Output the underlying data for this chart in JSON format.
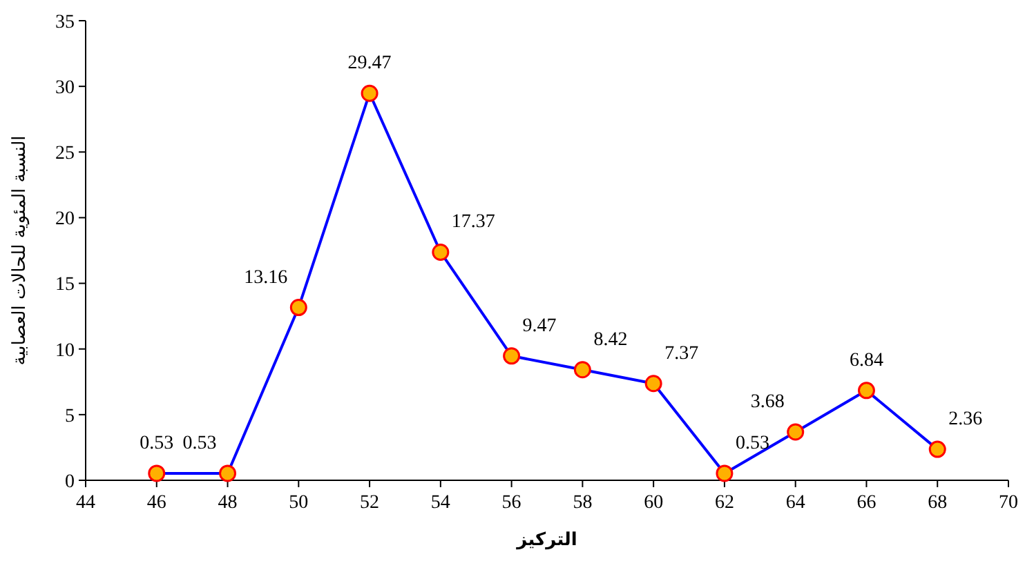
{
  "chart_data": {
    "type": "line",
    "xlabel": "التركيز",
    "ylabel": "النسبة المئوية للحالات العصابية",
    "x": [
      46,
      48,
      50,
      52,
      54,
      56,
      58,
      60,
      62,
      64,
      66,
      68
    ],
    "series": [
      {
        "color": "#0000ff",
        "values": [
          0.53,
          0.53,
          13.16,
          29.47,
          17.37,
          9.47,
          8.42,
          7.37,
          0.53,
          3.68,
          6.84,
          2.36
        ]
      }
    ],
    "xlim": [
      44,
      70
    ],
    "xticks": [
      44,
      46,
      48,
      50,
      52,
      54,
      56,
      58,
      60,
      62,
      64,
      66,
      68,
      70
    ],
    "ylim": [
      0,
      35
    ],
    "yticks": [
      0,
      5,
      10,
      15,
      20,
      25,
      30,
      35
    ],
    "marker": "circle",
    "data_labels": true
  }
}
